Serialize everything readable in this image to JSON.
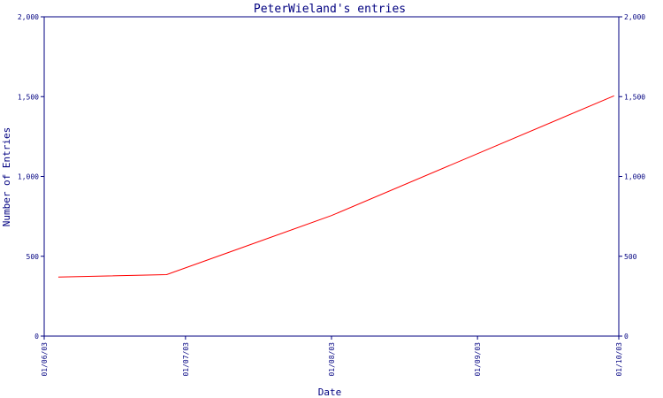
{
  "chart_data": {
    "type": "line",
    "title": "PeterWieland's entries",
    "xlabel": "Date",
    "ylabel": "Number of Entries",
    "ylim": [
      0,
      2000
    ],
    "yticks": [
      0,
      500,
      1000,
      1500,
      2000
    ],
    "ytick_labels": [
      "0",
      "500",
      "1,000",
      "1,500",
      "2,000"
    ],
    "xlim": [
      "2003-06-01",
      "2003-10-01"
    ],
    "xticks": [
      "2003-06-01",
      "2003-07-01",
      "2003-08-01",
      "2003-09-01",
      "2003-10-01"
    ],
    "xtick_labels": [
      "01/06/03",
      "01/07/03",
      "01/08/03",
      "01/09/03",
      "01/10/03"
    ],
    "grid": false,
    "right_axis": true,
    "series": [
      {
        "color": "#ff0000",
        "x": [
          "2003-06-04",
          "2003-06-27",
          "2003-08-01",
          "2003-09-30"
        ],
        "y": [
          370,
          385,
          755,
          1505
        ]
      }
    ]
  }
}
